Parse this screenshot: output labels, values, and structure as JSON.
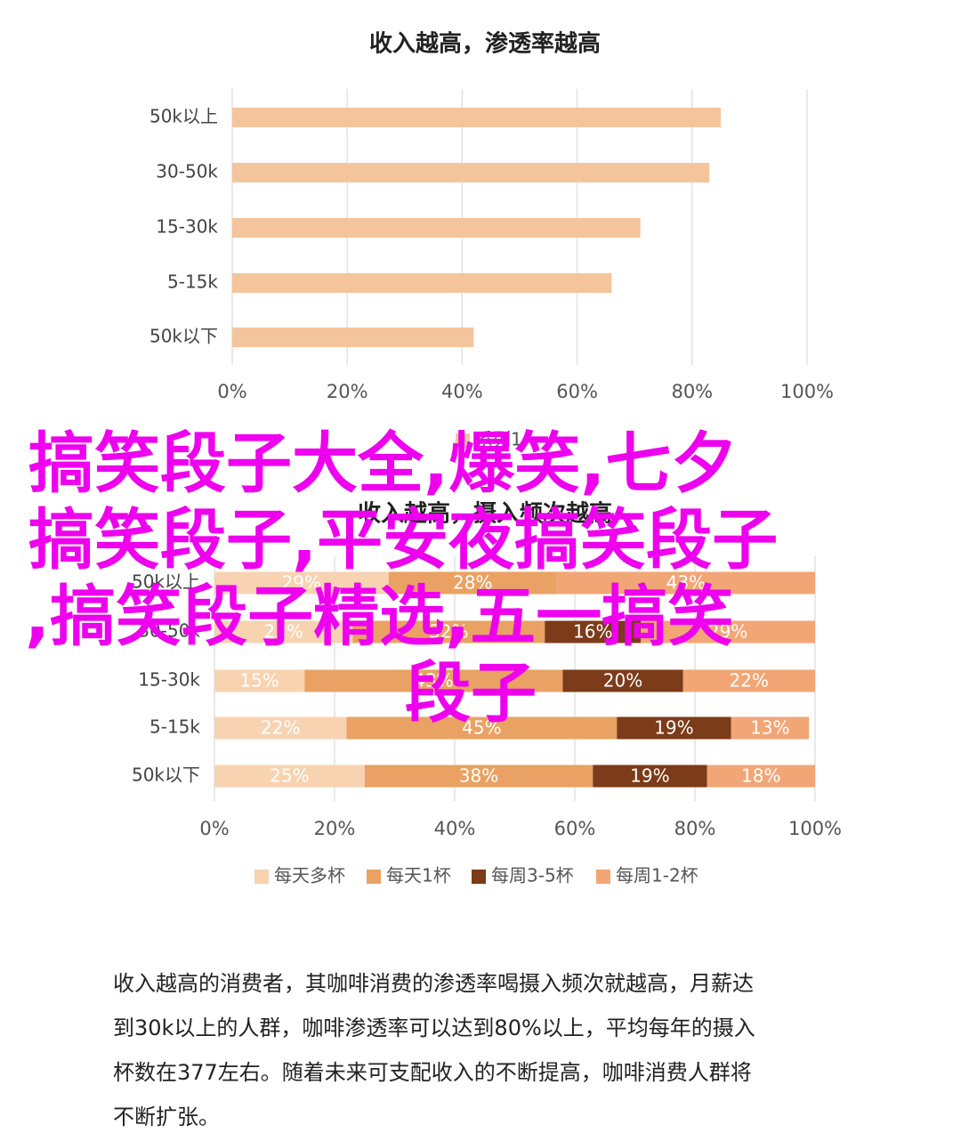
{
  "chart_data": [
    {
      "type": "bar",
      "orientation": "horizontal",
      "title": "收入越高，渗透率越高",
      "categories": [
        "50k以上",
        "30-50k",
        "15-30k",
        "5-15k",
        "50k以下"
      ],
      "series": [
        {
          "name": "系列1",
          "color": "#f4c59c",
          "values": [
            85,
            83,
            71,
            66,
            42
          ]
        }
      ],
      "xlim": [
        0,
        100
      ],
      "xticks": [
        {
          "value": 0,
          "label": "0%"
        },
        {
          "value": 20,
          "label": "20%"
        },
        {
          "value": 40,
          "label": "40%"
        },
        {
          "value": 60,
          "label": "60%"
        },
        {
          "value": 80,
          "label": "80%"
        },
        {
          "value": 100,
          "label": "100%"
        }
      ],
      "grid": true
    },
    {
      "type": "bar",
      "orientation": "horizontal",
      "stacked": true,
      "title": "收入越高，摄入频次越高",
      "categories": [
        "50k以上",
        "30-50k",
        "15-30k",
        "5-15k",
        "50k以下"
      ],
      "series": [
        {
          "name": "每天多杯",
          "color": "#f7d3b2",
          "values": [
            29,
            23,
            15,
            22,
            25
          ],
          "value_labels": [
            "29%",
            "23%",
            "15%",
            "22%",
            "25%"
          ]
        },
        {
          "name": "每天1杯",
          "color": "#e9a263",
          "values": [
            28,
            32,
            43,
            45,
            38
          ],
          "value_labels": [
            "28%",
            "32%",
            "43%",
            "45%",
            "38%"
          ]
        },
        {
          "name": "每周3-5杯",
          "color": "#7c3b19",
          "values": [
            0,
            16,
            20,
            19,
            19
          ],
          "value_labels": [
            null,
            "16%",
            "20%",
            "19%",
            "19%"
          ]
        },
        {
          "name": "每周1-2杯",
          "color": "#f2a676",
          "values": [
            43,
            29,
            22,
            13,
            18
          ],
          "value_labels": [
            "43%",
            "29%",
            "22%",
            "13%",
            "18%"
          ]
        }
      ],
      "xlim": [
        0,
        100
      ],
      "xticks": [
        {
          "value": 0,
          "label": "0%"
        },
        {
          "value": 20,
          "label": "20%"
        },
        {
          "value": 40,
          "label": "40%"
        },
        {
          "value": 60,
          "label": "60%"
        },
        {
          "value": 80,
          "label": "80%"
        },
        {
          "value": 100,
          "label": "100%"
        }
      ],
      "grid": true
    }
  ],
  "headline": [
    "搞笑段子大全,爆笑,七夕",
    "搞笑段子,平安夜搞笑段子",
    ",搞笑段子精选,五一搞笑",
    "段子"
  ],
  "paragraph": [
    "收入越高的消费者，其咖啡消费的渗透率喝摄入频次就越高，月薪达",
    "到30k以上的人群，咖啡渗透率可以达到80%以上，平均每年的摄入",
    "杯数在377左右。随着未来可支配收入的不断提高，咖啡消费人群将",
    "不断扩张。"
  ]
}
